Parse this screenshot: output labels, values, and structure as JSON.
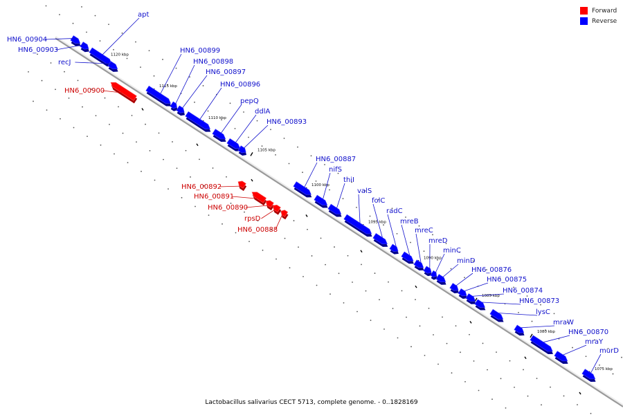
{
  "legend": {
    "forward_label": "Forward",
    "reverse_label": "Reverse",
    "forward_color": "#ff0000",
    "reverse_color": "#0000ff"
  },
  "caption": "Lactobacillus salivarius CECT 5713, complete genome. - 0..1828169",
  "colors": {
    "forward": "#ff0000",
    "reverse": "#0000ff",
    "backbone": "#9a9a9a",
    "forward_label": "#cc0000",
    "reverse_label": "#1010cc"
  },
  "ticks": [
    "1120 kbp",
    "1115 kbp",
    "1110 kbp",
    "1105 kbp",
    "1100 kbp",
    "1095 kbp",
    "1090 kbp",
    "1085 kbp",
    "1080 kbp",
    "1075 kbp"
  ],
  "genes": [
    {
      "name": "HN6_00904",
      "strand": "reverse"
    },
    {
      "name": "HN6_00903",
      "strand": "reverse"
    },
    {
      "name": "apt",
      "strand": "reverse"
    },
    {
      "name": "recJ",
      "strand": "reverse"
    },
    {
      "name": "HN6_00900",
      "strand": "forward"
    },
    {
      "name": "HN6_00899",
      "strand": "reverse"
    },
    {
      "name": "HN6_00898",
      "strand": "reverse"
    },
    {
      "name": "HN6_00897",
      "strand": "reverse"
    },
    {
      "name": "HN6_00896",
      "strand": "reverse"
    },
    {
      "name": "pepQ",
      "strand": "reverse"
    },
    {
      "name": "ddlA",
      "strand": "reverse"
    },
    {
      "name": "HN6_00893",
      "strand": "reverse"
    },
    {
      "name": "HN6_00892",
      "strand": "forward"
    },
    {
      "name": "HN6_00891",
      "strand": "forward"
    },
    {
      "name": "HN6_00890",
      "strand": "forward"
    },
    {
      "name": "rpsD",
      "strand": "forward"
    },
    {
      "name": "HN6_00888",
      "strand": "forward"
    },
    {
      "name": "HN6_00887",
      "strand": "reverse"
    },
    {
      "name": "nifS",
      "strand": "reverse"
    },
    {
      "name": "thiI",
      "strand": "reverse"
    },
    {
      "name": "valS",
      "strand": "reverse"
    },
    {
      "name": "folC",
      "strand": "reverse"
    },
    {
      "name": "radC",
      "strand": "reverse"
    },
    {
      "name": "mreB",
      "strand": "reverse"
    },
    {
      "name": "mreC",
      "strand": "reverse"
    },
    {
      "name": "mreD",
      "strand": "reverse"
    },
    {
      "name": "minC",
      "strand": "reverse"
    },
    {
      "name": "minD",
      "strand": "reverse"
    },
    {
      "name": "HN6_00876",
      "strand": "reverse"
    },
    {
      "name": "HN6_00875",
      "strand": "reverse"
    },
    {
      "name": "HN6_00874",
      "strand": "reverse"
    },
    {
      "name": "HN6_00873",
      "strand": "reverse"
    },
    {
      "name": "lysC",
      "strand": "reverse"
    },
    {
      "name": "mraW",
      "strand": "reverse"
    },
    {
      "name": "HN6_00870",
      "strand": "reverse"
    },
    {
      "name": "mraY",
      "strand": "reverse"
    },
    {
      "name": "murD",
      "strand": "reverse"
    }
  ]
}
